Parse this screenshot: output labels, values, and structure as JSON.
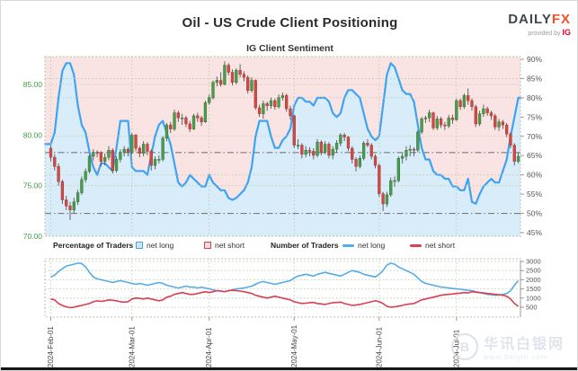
{
  "header": {
    "title": "Oil - US Crude Client Positioning",
    "subtitle": "IG Client Sentiment",
    "logo": {
      "daily": "DAILY",
      "fx": "FX",
      "provided_by": "provided by",
      "ig": "IG"
    }
  },
  "legend": {
    "pct_title": "Percentage of Traders",
    "num_title": "Number of Traders",
    "pct_net_long": "net long",
    "pct_net_short": "net short",
    "num_net_long": "net long",
    "num_net_short": "net short"
  },
  "watermark": {
    "logo_glyph": "B",
    "site_name": "华讯白银网",
    "site_url": "www.baiyin.com"
  },
  "colors": {
    "sentiment_line": "#3fa3f0",
    "fill_below_line": "#d9ecfa",
    "fill_above_line": "#fae3e3",
    "candle_up": "#4e9b4f",
    "candle_up_border": "#2f7a33",
    "candle_down": "#cf4a44",
    "candle_down_border": "#a93c37",
    "wick": "#555555",
    "grid": "#b5c9a8",
    "reference_line": "#7a7a7a",
    "price_axis_text": "#3f9b44",
    "pct_axis_text": "#555555",
    "traders_long_line": "#55abe8",
    "traders_short_line": "#dd3d52",
    "x_label_text": "#444444"
  },
  "chart_data": {
    "type": "composite",
    "main": {
      "type": "candlestick+area-line",
      "price_axis": {
        "side": "left",
        "labels": [
          "85.00",
          "80.00",
          "75.00",
          "70.00"
        ],
        "values": [
          85,
          80,
          75,
          70
        ]
      },
      "sentiment_axis": {
        "side": "right",
        "labels": [
          "90%",
          "85%",
          "80%",
          "75%",
          "70%",
          "65%",
          "60%",
          "55%",
          "50%",
          "45%"
        ],
        "values": [
          90,
          85,
          80,
          75,
          70,
          65,
          60,
          55,
          50,
          45
        ],
        "range": [
          45,
          90
        ]
      },
      "grid_pct_levels": [
        85,
        80,
        70,
        60
      ],
      "grid_price_levels": [
        85,
        75
      ],
      "reference_lines_pct": [
        65.8,
        50
      ]
    },
    "traders": {
      "type": "line",
      "axis": {
        "side": "right",
        "labels": [
          "3000",
          "2500",
          "2000",
          "1500",
          "1000",
          "500"
        ],
        "values": [
          3000,
          2500,
          2000,
          1500,
          1000,
          500
        ],
        "range": [
          400,
          3050
        ]
      }
    },
    "x_ticks": {
      "labels": [
        "2024-Feb-01",
        "2024-Mar-01",
        "2024-Apr-01",
        "2024-May-01",
        "2024-Jun-01",
        "2024-Jul-01"
      ],
      "day_indices": [
        0,
        21,
        41,
        63,
        85,
        105
      ]
    },
    "columns": [
      "open",
      "high",
      "low",
      "close",
      "net_long_pct",
      "net_long_traders",
      "net_short_traders"
    ],
    "days": [
      [
        78.7,
        79.0,
        77.4,
        77.8,
        68,
        2150,
        950
      ],
      [
        77.8,
        78.1,
        76.5,
        76.9,
        71,
        2250,
        900
      ],
      [
        76.9,
        77.2,
        75.0,
        75.4,
        80,
        2450,
        700
      ],
      [
        75.4,
        75.6,
        73.2,
        73.6,
        87,
        2600,
        600
      ],
      [
        73.6,
        74.0,
        72.6,
        73.0,
        89,
        2750,
        520
      ],
      [
        73.0,
        73.4,
        71.6,
        72.6,
        89,
        2800,
        480
      ],
      [
        72.6,
        73.8,
        72.3,
        73.4,
        86,
        2850,
        500
      ],
      [
        73.4,
        74.6,
        73.1,
        74.3,
        78,
        2900,
        560
      ],
      [
        74.3,
        75.9,
        74.1,
        75.6,
        73,
        2880,
        600
      ],
      [
        75.6,
        76.7,
        75.3,
        76.4,
        71,
        2700,
        650
      ],
      [
        76.4,
        78.1,
        76.2,
        77.9,
        66,
        2400,
        700
      ],
      [
        77.9,
        78.6,
        77.5,
        78.3,
        62,
        2150,
        800
      ],
      [
        78.3,
        78.5,
        77.8,
        78.2,
        60,
        2050,
        850
      ],
      [
        78.2,
        78.4,
        76.9,
        77.4,
        63,
        2000,
        820
      ],
      [
        77.4,
        78.2,
        77.0,
        77.8,
        63,
        1950,
        850
      ],
      [
        77.8,
        78.9,
        77.5,
        78.5,
        62,
        1900,
        900
      ],
      [
        78.5,
        78.7,
        76.2,
        76.5,
        61,
        1850,
        880
      ],
      [
        76.5,
        77.9,
        76.3,
        77.6,
        67,
        1900,
        850
      ],
      [
        77.6,
        78.6,
        77.3,
        78.3,
        74,
        1950,
        800
      ],
      [
        78.3,
        78.9,
        77.9,
        78.6,
        74,
        1900,
        780
      ],
      [
        78.6,
        78.8,
        77.9,
        78.3,
        74,
        1850,
        800
      ],
      [
        78.3,
        80.2,
        78.1,
        80.0,
        62,
        1800,
        950
      ],
      [
        80.0,
        80.1,
        78.4,
        78.7,
        61,
        1750,
        1000
      ],
      [
        78.7,
        78.9,
        77.8,
        78.2,
        61,
        1800,
        980
      ],
      [
        78.2,
        79.4,
        77.9,
        79.1,
        61,
        1750,
        950
      ],
      [
        79.1,
        79.3,
        78.0,
        78.4,
        60,
        1700,
        1000
      ],
      [
        78.4,
        78.6,
        76.5,
        77.0,
        65,
        1750,
        950
      ],
      [
        77.0,
        77.9,
        76.6,
        77.6,
        70,
        1800,
        900
      ],
      [
        77.6,
        78.0,
        77.2,
        77.6,
        73,
        1850,
        850
      ],
      [
        77.6,
        79.9,
        77.4,
        79.7,
        74,
        1800,
        900
      ],
      [
        79.7,
        81.2,
        79.4,
        81.0,
        71,
        1700,
        1050
      ],
      [
        81.0,
        81.3,
        80.2,
        80.6,
        68,
        1650,
        1100
      ],
      [
        80.6,
        82.5,
        80.4,
        82.2,
        63,
        1600,
        1200
      ],
      [
        82.2,
        82.4,
        81.3,
        81.7,
        58,
        1550,
        1250
      ],
      [
        81.7,
        82.1,
        81.0,
        81.7,
        57,
        1600,
        1300
      ],
      [
        81.7,
        81.9,
        80.8,
        81.1,
        58,
        1650,
        1250
      ],
      [
        81.1,
        81.4,
        80.3,
        80.6,
        60,
        1600,
        1200
      ],
      [
        80.6,
        82.1,
        80.5,
        81.9,
        59,
        1600,
        1200
      ],
      [
        81.9,
        82.2,
        81.3,
        81.7,
        58,
        1550,
        1250
      ],
      [
        81.7,
        81.9,
        80.9,
        81.3,
        57,
        1600,
        1300
      ],
      [
        81.3,
        83.4,
        81.2,
        83.2,
        57,
        1550,
        1350
      ],
      [
        83.2,
        84.0,
        83.0,
        83.7,
        60,
        1500,
        1300
      ],
      [
        83.7,
        85.4,
        83.5,
        85.2,
        58,
        1450,
        1350
      ],
      [
        85.2,
        85.8,
        84.8,
        85.4,
        57,
        1400,
        1400
      ],
      [
        85.4,
        86.2,
        84.8,
        85.0,
        56,
        1380,
        1380
      ],
      [
        85.0,
        87.3,
        84.9,
        86.9,
        56,
        1350,
        1350
      ],
      [
        86.9,
        87.1,
        85.9,
        86.2,
        54,
        1400,
        1400
      ],
      [
        86.2,
        86.5,
        84.9,
        85.2,
        53.5,
        1450,
        1420
      ],
      [
        85.2,
        86.6,
        85.0,
        86.4,
        54,
        1500,
        1400
      ],
      [
        86.4,
        87.0,
        85.7,
        86.0,
        55,
        1520,
        1380
      ],
      [
        86.0,
        86.3,
        85.3,
        85.7,
        56,
        1550,
        1350
      ],
      [
        85.7,
        85.9,
        84.1,
        84.4,
        58,
        1600,
        1300
      ],
      [
        84.4,
        85.7,
        84.2,
        85.4,
        62,
        1650,
        1250
      ],
      [
        85.4,
        85.5,
        82.5,
        82.7,
        70,
        1750,
        1150
      ],
      [
        82.7,
        83.0,
        81.8,
        82.1,
        74,
        1850,
        1100
      ],
      [
        82.1,
        83.4,
        81.6,
        83.1,
        74,
        1900,
        1050
      ],
      [
        83.1,
        83.3,
        82.4,
        82.9,
        74,
        1850,
        1000
      ],
      [
        82.9,
        83.7,
        82.6,
        83.4,
        70,
        1800,
        1050
      ],
      [
        83.4,
        83.6,
        82.5,
        82.8,
        67,
        1750,
        1100
      ],
      [
        82.8,
        84.0,
        82.6,
        83.7,
        67,
        1800,
        1050
      ],
      [
        83.7,
        84.2,
        83.4,
        83.9,
        69,
        1850,
        1000
      ],
      [
        83.9,
        84.1,
        82.3,
        82.6,
        70,
        1900,
        950
      ],
      [
        82.6,
        82.9,
        81.5,
        81.9,
        72,
        1950,
        900
      ],
      [
        81.9,
        82.0,
        78.7,
        79.0,
        78,
        2100,
        800
      ],
      [
        79.0,
        79.6,
        78.6,
        79.0,
        80,
        2200,
        750
      ],
      [
        79.0,
        79.2,
        77.7,
        78.1,
        80,
        2250,
        700
      ],
      [
        78.1,
        78.9,
        77.8,
        78.5,
        79,
        2300,
        720
      ],
      [
        78.5,
        78.8,
        77.9,
        78.4,
        79,
        2250,
        750
      ],
      [
        78.4,
        78.7,
        77.6,
        78.0,
        78,
        2200,
        760
      ],
      [
        78.0,
        79.6,
        77.8,
        79.3,
        80,
        2300,
        700
      ],
      [
        79.3,
        79.5,
        78.0,
        78.3,
        80,
        2350,
        680
      ],
      [
        78.3,
        79.4,
        78.1,
        79.1,
        80,
        2400,
        650
      ],
      [
        79.1,
        79.3,
        77.7,
        78.0,
        79,
        2350,
        700
      ],
      [
        78.0,
        78.9,
        77.6,
        78.6,
        76,
        2300,
        750
      ],
      [
        78.6,
        79.5,
        78.3,
        79.2,
        75,
        2250,
        760
      ],
      [
        79.2,
        80.2,
        78.9,
        80.0,
        76,
        2200,
        780
      ],
      [
        80.0,
        80.2,
        79.4,
        79.8,
        80,
        2300,
        700
      ],
      [
        79.8,
        79.9,
        78.4,
        78.7,
        82,
        2400,
        650
      ],
      [
        78.7,
        78.9,
        77.2,
        77.6,
        82,
        2500,
        600
      ],
      [
        77.6,
        77.8,
        76.4,
        76.9,
        81,
        2450,
        620
      ],
      [
        76.9,
        78.0,
        76.7,
        77.7,
        80,
        2400,
        650
      ],
      [
        77.7,
        79.4,
        77.5,
        79.2,
        76,
        2300,
        700
      ],
      [
        79.2,
        79.6,
        78.8,
        79.0,
        72,
        2250,
        750
      ],
      [
        79.0,
        79.2,
        77.6,
        77.9,
        70,
        2200,
        800
      ],
      [
        77.9,
        78.1,
        76.7,
        77.0,
        69,
        2150,
        850
      ],
      [
        77.0,
        77.2,
        73.9,
        74.2,
        70,
        2300,
        800
      ],
      [
        74.2,
        74.4,
        72.5,
        73.2,
        78,
        2500,
        700
      ],
      [
        73.2,
        74.4,
        72.9,
        74.1,
        86,
        2800,
        550
      ],
      [
        74.1,
        75.8,
        73.9,
        75.5,
        89,
        2900,
        500
      ],
      [
        75.5,
        75.9,
        74.9,
        75.5,
        88,
        2850,
        520
      ],
      [
        75.5,
        77.9,
        75.3,
        77.7,
        85,
        2700,
        560
      ],
      [
        77.7,
        78.2,
        77.2,
        77.9,
        82,
        2600,
        600
      ],
      [
        77.9,
        78.9,
        77.5,
        78.5,
        81,
        2500,
        650
      ],
      [
        78.5,
        79.0,
        77.9,
        78.6,
        81,
        2400,
        680
      ],
      [
        78.6,
        78.8,
        77.9,
        78.5,
        79,
        2300,
        700
      ],
      [
        78.5,
        80.5,
        78.3,
        80.3,
        73,
        2100,
        800
      ],
      [
        80.3,
        81.8,
        80.1,
        81.6,
        67,
        1900,
        900
      ],
      [
        81.6,
        81.9,
        81.2,
        81.7,
        64,
        1800,
        950
      ],
      [
        81.7,
        82.5,
        81.3,
        82.2,
        64,
        1750,
        1000
      ],
      [
        82.2,
        82.3,
        80.5,
        80.7,
        61,
        1700,
        1050
      ],
      [
        80.7,
        81.9,
        80.5,
        81.6,
        60,
        1650,
        1100
      ],
      [
        81.6,
        81.8,
        80.7,
        81.0,
        60,
        1600,
        1150
      ],
      [
        81.0,
        81.3,
        80.5,
        80.9,
        59,
        1580,
        1180
      ],
      [
        80.9,
        82.0,
        80.7,
        81.7,
        59,
        1550,
        1200
      ],
      [
        81.7,
        82.0,
        81.1,
        81.5,
        57,
        1520,
        1220
      ],
      [
        81.5,
        83.6,
        81.4,
        83.4,
        57,
        1500,
        1250
      ],
      [
        83.4,
        83.6,
        82.5,
        82.8,
        56,
        1480,
        1270
      ],
      [
        82.8,
        84.1,
        82.6,
        83.9,
        56,
        1450,
        1300
      ],
      [
        83.9,
        84.6,
        83.0,
        83.4,
        59,
        1420,
        1280
      ],
      [
        83.4,
        83.6,
        82.4,
        82.8,
        53,
        1400,
        1350
      ],
      [
        82.8,
        83.0,
        80.8,
        81.1,
        52.5,
        1350,
        1320
      ],
      [
        81.1,
        82.4,
        80.9,
        82.1,
        55,
        1300,
        1300
      ],
      [
        82.1,
        83.0,
        81.8,
        82.6,
        57,
        1250,
        1280
      ],
      [
        82.6,
        82.8,
        81.9,
        82.2,
        58,
        1200,
        1250
      ],
      [
        82.2,
        82.4,
        81.5,
        81.9,
        59,
        1180,
        1230
      ],
      [
        81.9,
        82.1,
        80.5,
        80.8,
        58,
        1150,
        1200
      ],
      [
        80.8,
        81.6,
        80.4,
        81.3,
        58,
        1160,
        1180
      ],
      [
        81.3,
        81.5,
        80.6,
        81.0,
        61,
        1200,
        1150
      ],
      [
        81.0,
        81.2,
        79.8,
        80.1,
        64,
        1250,
        1100
      ],
      [
        80.1,
        80.3,
        78.7,
        79.0,
        70,
        1400,
        950
      ],
      [
        79.0,
        79.2,
        77.0,
        77.4,
        75,
        1700,
        700
      ],
      [
        77.4,
        78.3,
        77.2,
        77.9,
        80,
        1950,
        550
      ]
    ]
  }
}
